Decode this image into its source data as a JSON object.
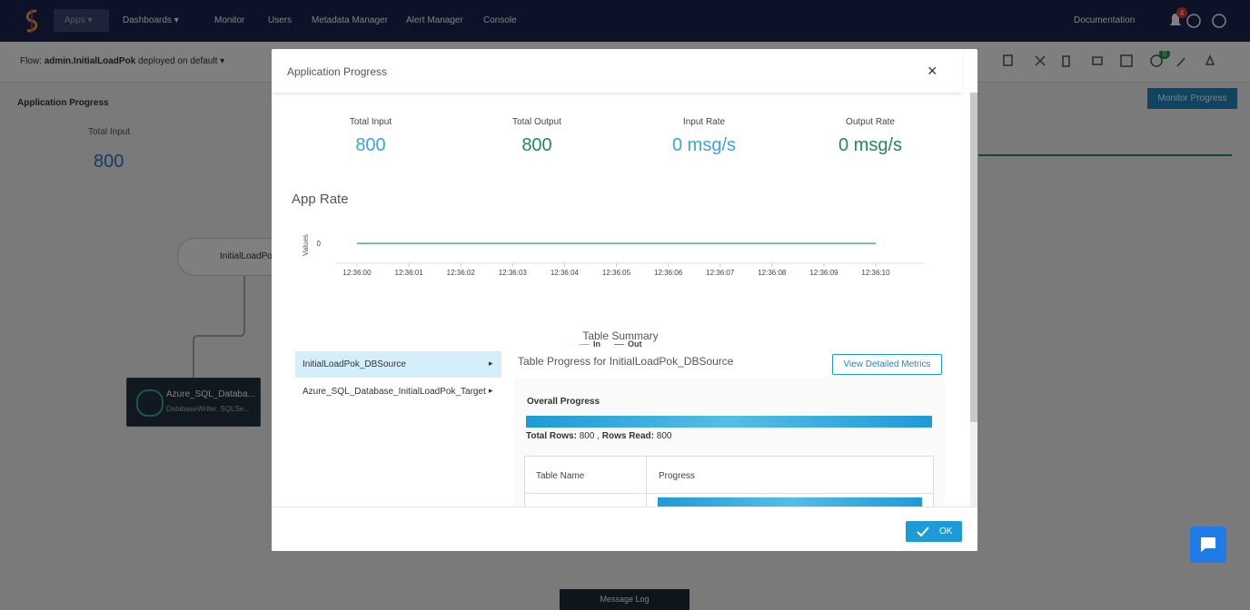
{
  "nav": {
    "items": [
      "Apps",
      "Dashboards",
      "Monitor",
      "Users",
      "Metadata Manager",
      "Alert Manager",
      "Console"
    ],
    "documentation": "Documentation",
    "notification_count": 4
  },
  "flow": {
    "label": "Flow:",
    "name": "admin.InitialLoadPok",
    "status": "deployed on default"
  },
  "background": {
    "title": "Application Progress",
    "total_input_label": "Total Input",
    "total_input": 800,
    "node": "InitialLoadPok",
    "component_name": "Azure_SQL_Databa...",
    "component_detail": "DatabaseWriter, SQLSe...",
    "monitor_button": "Monitor Progress",
    "message_log": "Message Log",
    "toolbar_badge": 0
  },
  "modal": {
    "title": "Application Progress",
    "stats": [
      {
        "label": "Total Input",
        "value": 800,
        "color": "#3aa6d6"
      },
      {
        "label": "Total Output",
        "value": 800,
        "color": "#1f8a5b"
      },
      {
        "label": "Input Rate",
        "value": "0 msg/s",
        "color": "#3aa6d6"
      },
      {
        "label": "Output Rate",
        "value": "0 msg/s",
        "color": "#1f8a5b"
      }
    ],
    "app_rate": {
      "type": "line",
      "title": "App Rate",
      "y_label": "Values",
      "categories": [
        "12:36:00",
        "12:36:01",
        "12:36:02",
        "12:36:03",
        "12:36:04",
        "12:36:05",
        "12:36:06",
        "12:36:07",
        "12:36:08",
        "12:36:09",
        "12:36:10"
      ],
      "series": [
        {
          "name": "In",
          "color": "#6cc3e0",
          "values": [
            0,
            0,
            0,
            0,
            0,
            0,
            0,
            0,
            0,
            0,
            0
          ]
        },
        {
          "name": "Out",
          "color": "#4a9a8c",
          "values": [
            0,
            0,
            0,
            0,
            0,
            0,
            0,
            0,
            0,
            0,
            0
          ]
        }
      ],
      "ylim": [
        -1,
        0.6
      ],
      "yticks": [
        0
      ]
    },
    "table_summary": {
      "title": "Table Summary",
      "items": [
        "InitialLoadPok_DBSource",
        "Azure_SQL_Database_InitialLoadPok_Target"
      ],
      "detail_title": "Table Progress for InitialLoadPok_DBSource",
      "detail_button": "View Detailed Metrics",
      "overall_label": "Overall Progress",
      "total_rows_label": "Total Rows:",
      "total_rows": 800,
      "separator": ",",
      "rows_read_label": "Rows Read:",
      "rows_read": 800,
      "columns": [
        "Table Name",
        "Progress"
      ]
    },
    "ok": "OK"
  }
}
